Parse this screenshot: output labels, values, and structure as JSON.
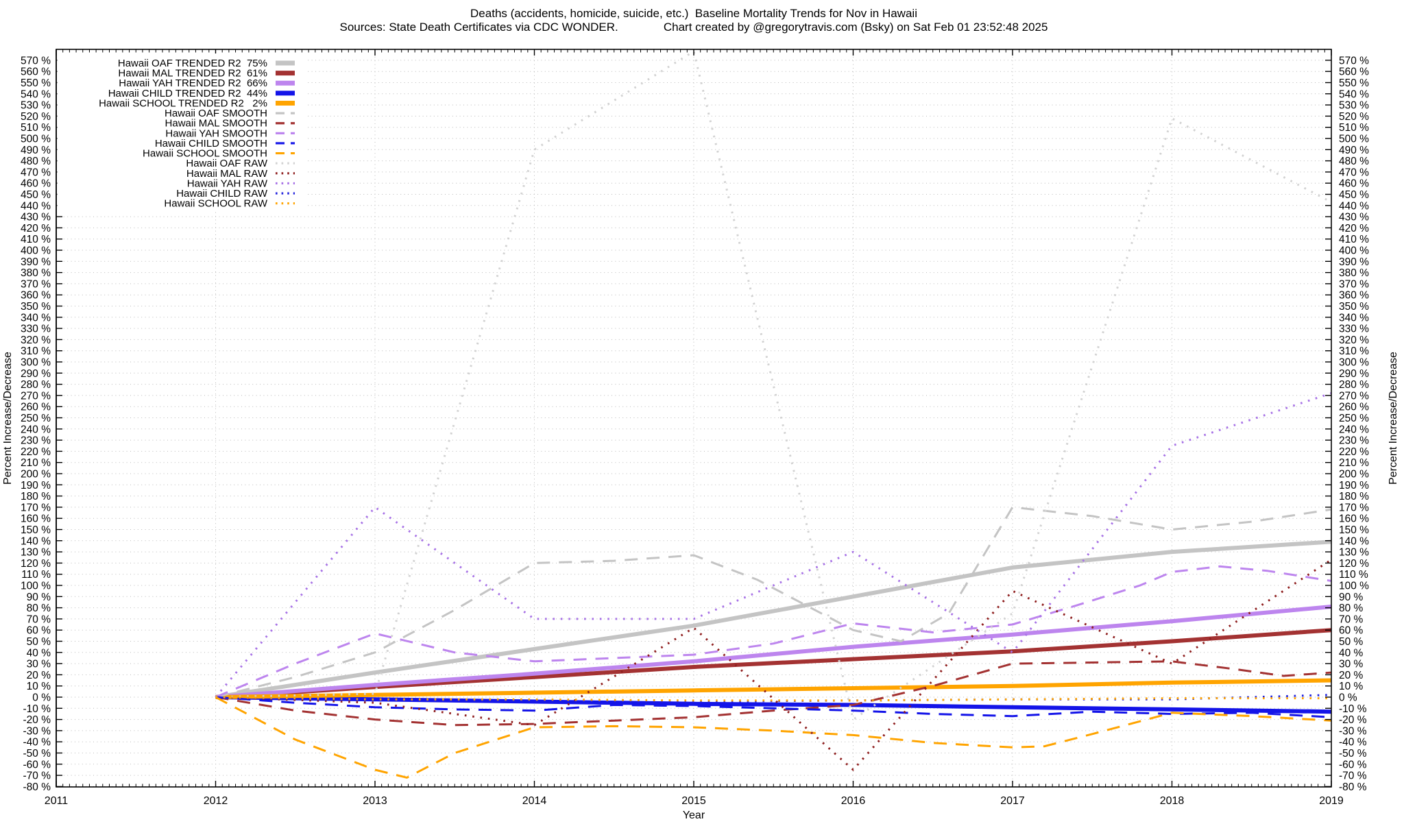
{
  "chart_data": {
    "type": "line",
    "title": "Deaths (accidents, homicide, suicide, etc.)  Baseline Mortality Trends for Nov in Hawaii",
    "subtitle": "Sources: State Death Certificates via CDC WONDER.              Chart created by @gregorytravis.com (Bsky) on Sat Feb 01 23:52:48 2025",
    "xlabel": "Year",
    "ylabel_left": "Percent Increase/Decrease",
    "ylabel_right": "Percent Increase/Decrease",
    "x_ticks": [
      2011,
      2012,
      2013,
      2014,
      2015,
      2016,
      2017,
      2018,
      2019
    ],
    "x_range": [
      2011,
      2019
    ],
    "y_range": [
      -80.4,
      580
    ],
    "y_axis": {
      "min": -80,
      "max": 570,
      "step": 10,
      "suffix": " %"
    },
    "grid": true,
    "legend_position": "top-left-inside",
    "series": [
      {
        "label": "Hawaii OAF TRENDED R2  75%",
        "group": "trend",
        "color": "#c4c4c4",
        "x": [
          2012,
          2013,
          2014,
          2015,
          2016,
          2017,
          2018,
          2019
        ],
        "y": [
          0,
          22,
          43,
          64,
          90,
          116,
          130,
          139
        ]
      },
      {
        "label": "Hawaii MAL TRENDED R2  61%",
        "group": "trend",
        "color": "#a33232",
        "x": [
          2012,
          2013,
          2014,
          2015,
          2016,
          2017,
          2018,
          2019
        ],
        "y": [
          0,
          9,
          18,
          27,
          34,
          41,
          50,
          60
        ]
      },
      {
        "label": "Hawaii YAH TRENDED R2  66%",
        "group": "trend",
        "color": "#bd85ee",
        "x": [
          2012,
          2013,
          2014,
          2015,
          2016,
          2017,
          2018,
          2019
        ],
        "y": [
          0,
          11,
          21,
          32,
          45,
          56,
          68,
          81
        ]
      },
      {
        "label": "Hawaii CHILD TRENDED R2  44%",
        "group": "trend",
        "color": "#1414e8",
        "x": [
          2012,
          2013,
          2014,
          2015,
          2016,
          2017,
          2018,
          2019
        ],
        "y": [
          0,
          -2,
          -4,
          -6,
          -7,
          -9,
          -11,
          -13
        ]
      },
      {
        "label": "Hawaii SCHOOL TRENDED R2   2%",
        "group": "trend",
        "color": "#ffa400",
        "x": [
          2012,
          2013,
          2014,
          2015,
          2016,
          2017,
          2018,
          2019
        ],
        "y": [
          0,
          2,
          4,
          6,
          8,
          10,
          13,
          15
        ]
      },
      {
        "label": "Hawaii OAF SMOOTH",
        "group": "smooth",
        "color": "#c4c4c4",
        "x": [
          2012,
          2012.5,
          2013,
          2013.5,
          2014,
          2014.5,
          2015,
          2015.4,
          2016,
          2016.3,
          2016.6,
          2017,
          2017.5,
          2018,
          2018.5,
          2019
        ],
        "y": [
          0,
          18,
          40,
          78,
          120,
          122,
          127,
          105,
          60,
          50,
          75,
          170,
          162,
          150,
          157,
          168
        ]
      },
      {
        "label": "Hawaii MAL SMOOTH",
        "group": "smooth",
        "color": "#a33232",
        "x": [
          2012,
          2012.5,
          2013,
          2013.5,
          2014,
          2014.5,
          2015,
          2015.5,
          2016,
          2016.5,
          2017,
          2017.5,
          2018,
          2018.4,
          2018.7,
          2019
        ],
        "y": [
          0,
          -12,
          -20,
          -25,
          -24,
          -21,
          -18,
          -12,
          -7,
          10,
          30,
          31,
          32,
          25,
          19,
          22
        ]
      },
      {
        "label": "Hawaii YAH SMOOTH",
        "group": "smooth",
        "color": "#bd85ee",
        "x": [
          2012,
          2012.5,
          2013,
          2013.5,
          2014,
          2014.5,
          2015,
          2015.5,
          2016,
          2016.5,
          2017,
          2017.4,
          2017.8,
          2018,
          2018.3,
          2018.6,
          2019
        ],
        "y": [
          0,
          30,
          57,
          40,
          32,
          35,
          38,
          48,
          66,
          58,
          65,
          82,
          100,
          112,
          117,
          113,
          104
        ]
      },
      {
        "label": "Hawaii CHILD SMOOTH",
        "group": "smooth",
        "color": "#1414e8",
        "x": [
          2012,
          2012.5,
          2013,
          2013.5,
          2014,
          2014.5,
          2015,
          2015.5,
          2016,
          2016.5,
          2017,
          2017.5,
          2018,
          2018.5,
          2019
        ],
        "y": [
          0,
          -5,
          -9,
          -11,
          -12,
          -7,
          -8,
          -10,
          -12,
          -15,
          -17,
          -13,
          -15,
          -14,
          -18
        ]
      },
      {
        "label": "Hawaii SCHOOL SMOOTH",
        "group": "smooth",
        "color": "#ffa400",
        "x": [
          2012,
          2012.5,
          2013,
          2013.2,
          2013.5,
          2014,
          2014.5,
          2015,
          2015.5,
          2016,
          2016.5,
          2017,
          2017.2,
          2017.5,
          2018,
          2018.5,
          2019
        ],
        "y": [
          0,
          -38,
          -65,
          -72,
          -50,
          -27,
          -26,
          -27,
          -30,
          -34,
          -41,
          -45,
          -44,
          -33,
          -14,
          -17,
          -21
        ]
      },
      {
        "label": "Hawaii OAF RAW",
        "group": "raw",
        "color": "#d2d2d2",
        "x": [
          2012,
          2013,
          2014,
          2015,
          2016,
          2017,
          2018,
          2019
        ],
        "y": [
          0,
          3,
          490,
          578,
          -20,
          75,
          518,
          443
        ]
      },
      {
        "label": "Hawaii MAL RAW",
        "group": "raw",
        "color": "#8f1f1f",
        "x": [
          2012,
          2013,
          2014,
          2015,
          2016,
          2017,
          2018,
          2019
        ],
        "y": [
          0,
          -5,
          -25,
          62,
          -65,
          95,
          30,
          123
        ]
      },
      {
        "label": "Hawaii YAH RAW",
        "group": "raw",
        "color": "#a873e6",
        "x": [
          2012,
          2013,
          2014,
          2015,
          2016,
          2017,
          2018,
          2019
        ],
        "y": [
          0,
          170,
          70,
          70,
          130,
          40,
          225,
          272
        ]
      },
      {
        "label": "Hawaii CHILD RAW",
        "group": "raw",
        "color": "#2222dd",
        "x": [
          2012,
          2013,
          2014,
          2015,
          2016,
          2017,
          2018,
          2019
        ],
        "y": [
          0,
          -3,
          -3,
          -4,
          -3,
          -2,
          -2,
          2
        ]
      },
      {
        "label": "Hawaii SCHOOL RAW",
        "group": "raw",
        "color": "#ffa400",
        "x": [
          2012,
          2013,
          2014,
          2015,
          2016,
          2017,
          2018,
          2019
        ],
        "y": [
          0,
          -2,
          -2,
          -3,
          -3,
          -2,
          -1,
          -1
        ]
      }
    ]
  }
}
